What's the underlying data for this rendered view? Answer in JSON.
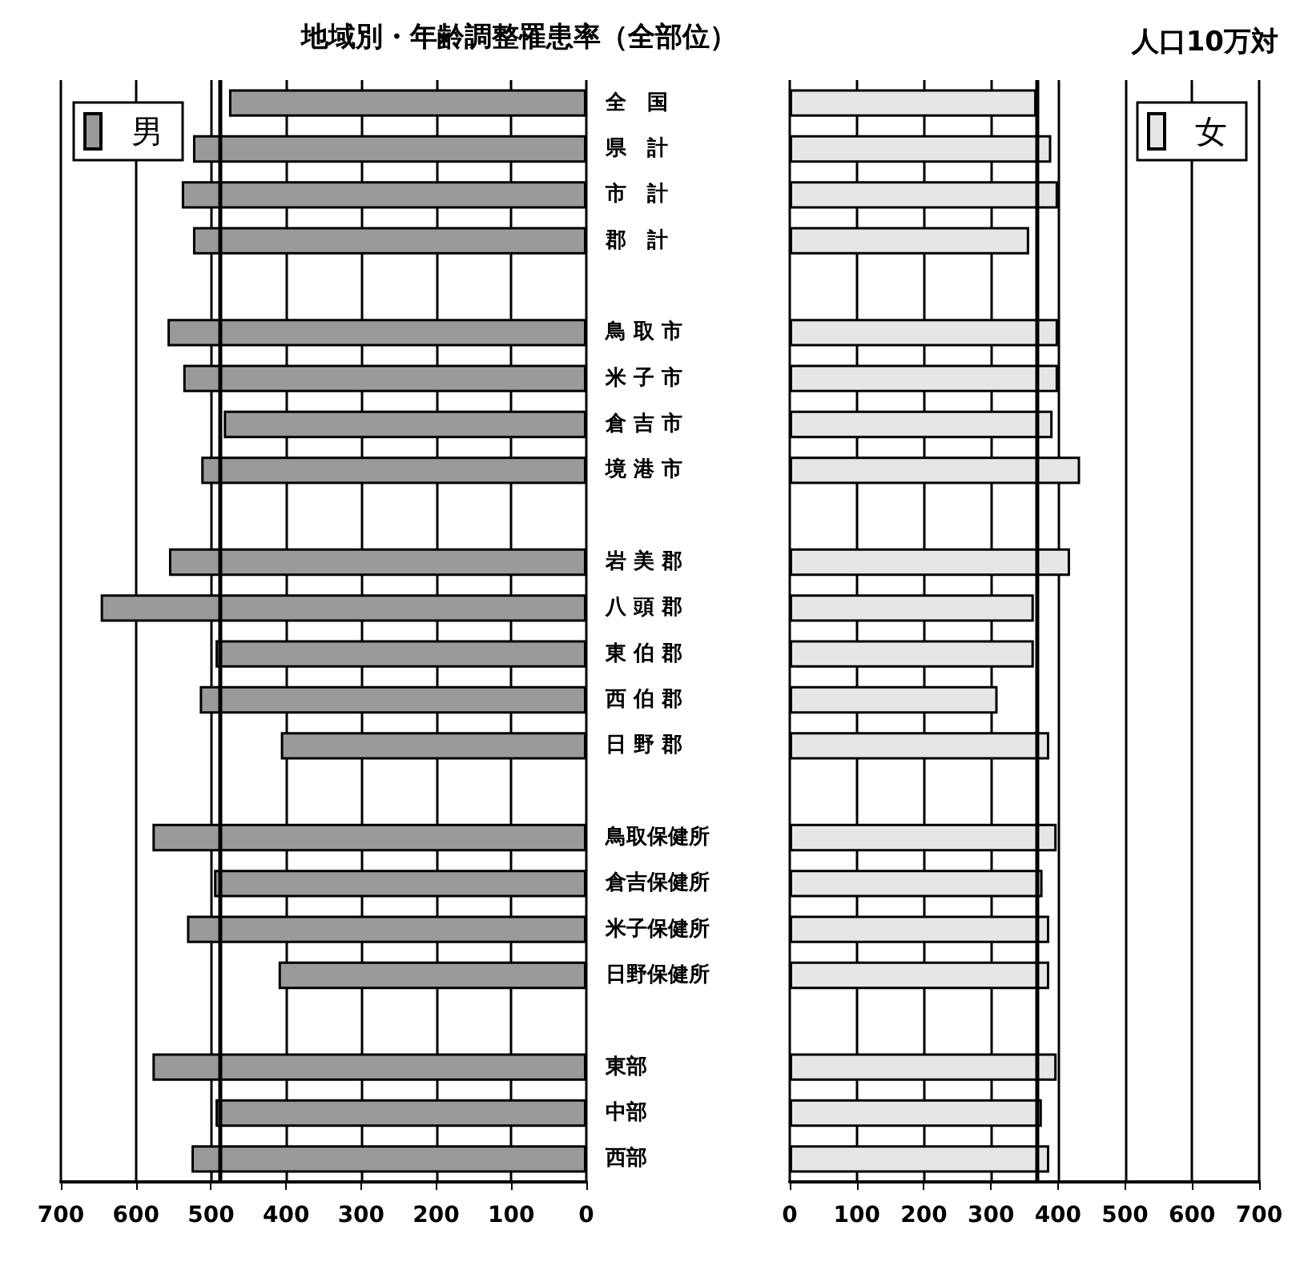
{
  "chart_data": [
    {
      "type": "bar",
      "orientation": "horizontal",
      "title": "地域別・年齢調整罹患率（全部位）",
      "categories": [
        "全　国",
        "県　計",
        "市　計",
        "郡　計",
        null,
        "鳥 取 市",
        "米 子 市",
        "倉 吉 市",
        "境 港 市",
        null,
        "岩 美 郡",
        "八 頭 郡",
        "東 伯 郡",
        "西 伯 郡",
        "日 野 郡",
        null,
        "鳥取保健所",
        "倉吉保健所",
        "米子保健所",
        "日野保健所",
        null,
        "東部",
        "中部",
        "西部"
      ],
      "series": [
        {
          "name": "男",
          "color": "#9a9a9a",
          "values": [
            476,
            524,
            539,
            524,
            null,
            558,
            537,
            483,
            513,
            null,
            556,
            647,
            494,
            515,
            407,
            null,
            578,
            496,
            532,
            410,
            null,
            578,
            494,
            526
          ]
        }
      ],
      "xlim": [
        700,
        0
      ],
      "xticks": [
        700,
        600,
        500,
        400,
        300,
        200,
        100,
        0
      ],
      "grid": "x",
      "legend": "top left",
      "ref_lines": [
        {
          "axis": "x",
          "value": 488,
          "color": "#000000"
        }
      ]
    },
    {
      "type": "bar",
      "orientation": "horizontal",
      "annotations": [
        "人口10万対"
      ],
      "categories": [
        null,
        null,
        null,
        null,
        null,
        null,
        null,
        null,
        null,
        null,
        null,
        null,
        null,
        null,
        null,
        null,
        null,
        null,
        null,
        null,
        null,
        null,
        null,
        null
      ],
      "series": [
        {
          "name": "女",
          "color": "#e6e6e6",
          "values": [
            368,
            390,
            400,
            357,
            null,
            400,
            400,
            392,
            433,
            null,
            418,
            364,
            364,
            310,
            387,
            null,
            398,
            377,
            387,
            387,
            null,
            398,
            376,
            387
          ]
        }
      ],
      "xlim": [
        0,
        700
      ],
      "xticks": [
        0,
        100,
        200,
        300,
        400,
        500,
        600,
        700
      ],
      "grid": "x",
      "legend": "top right",
      "ref_lines": [
        {
          "axis": "x",
          "value": 368,
          "color": "#000000"
        }
      ]
    }
  ]
}
